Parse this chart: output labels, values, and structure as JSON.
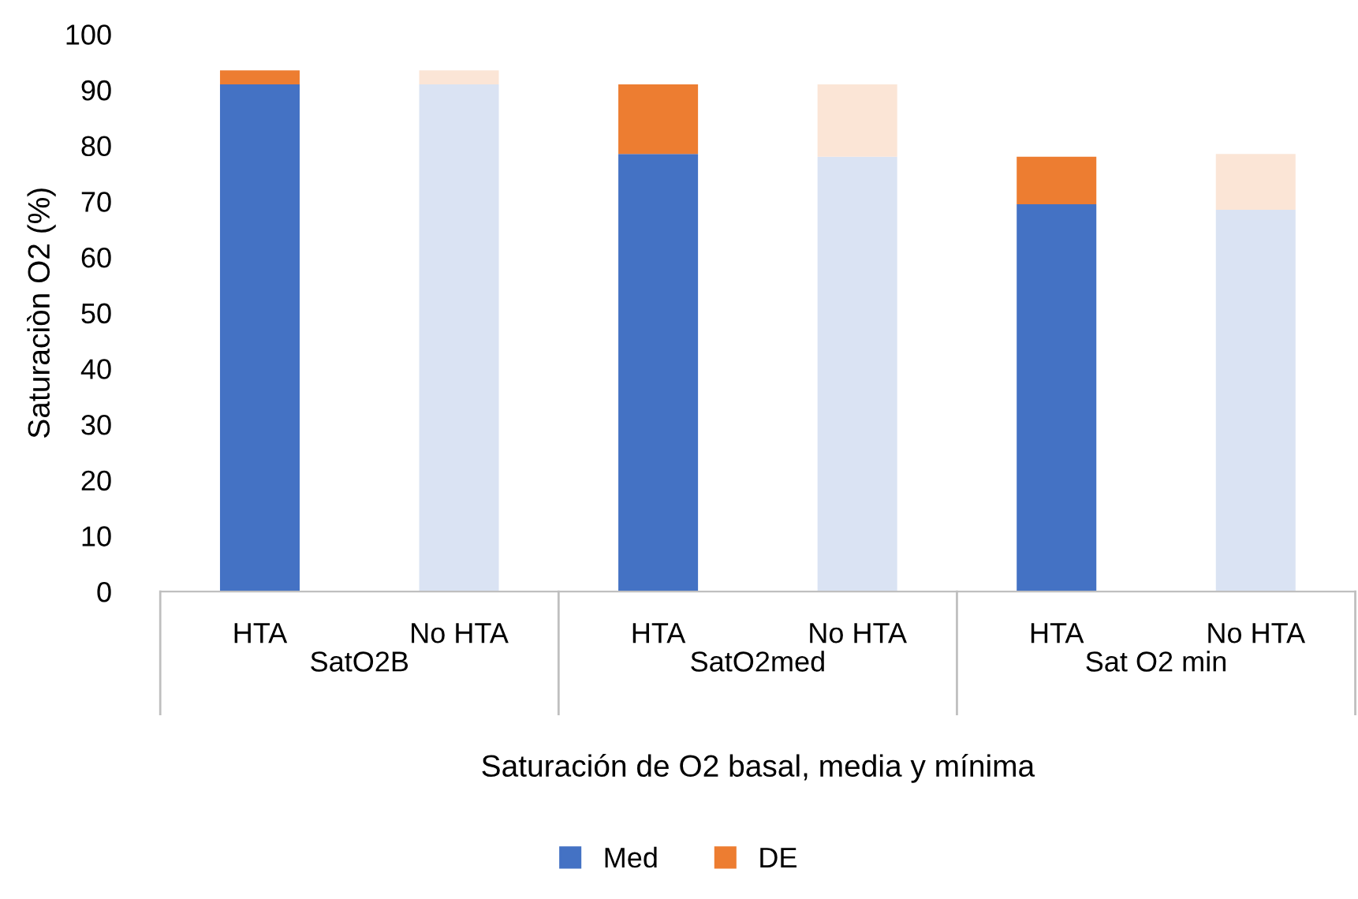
{
  "chart_data": {
    "type": "bar",
    "stacked": true,
    "xlabel": "Saturación de O2 basal, media y mínima",
    "ylabel": "Saturaciòn O2 (%)",
    "categories": [
      "HTA",
      "No HTA",
      "HTA",
      "No HTA",
      "HTA",
      "No HTA"
    ],
    "annotations": [
      "SatO2B",
      "SatO2med",
      "Sat O2 min"
    ],
    "series": [
      {
        "name": "Med",
        "color": "#4472c4",
        "colors": [
          "#4472c4",
          "#dae3f3",
          "#4472c4",
          "#dae3f3",
          "#4472c4",
          "#dae3f3"
        ],
        "values": [
          91,
          91,
          78.5,
          78,
          69.5,
          68.5
        ]
      },
      {
        "name": "DE",
        "color": "#ed7d31",
        "colors": [
          "#ed7d31",
          "#fbe5d6",
          "#ed7d31",
          "#fbe5d6",
          "#ed7d31",
          "#fbe5d6"
        ],
        "values": [
          2.5,
          2.5,
          12.5,
          13,
          8.5,
          10
        ]
      }
    ],
    "ylim": [
      0,
      100
    ],
    "yticks": [
      0,
      10,
      20,
      30,
      40,
      50,
      60,
      70,
      80,
      90,
      100
    ],
    "grid": false,
    "legend": "bottom"
  }
}
